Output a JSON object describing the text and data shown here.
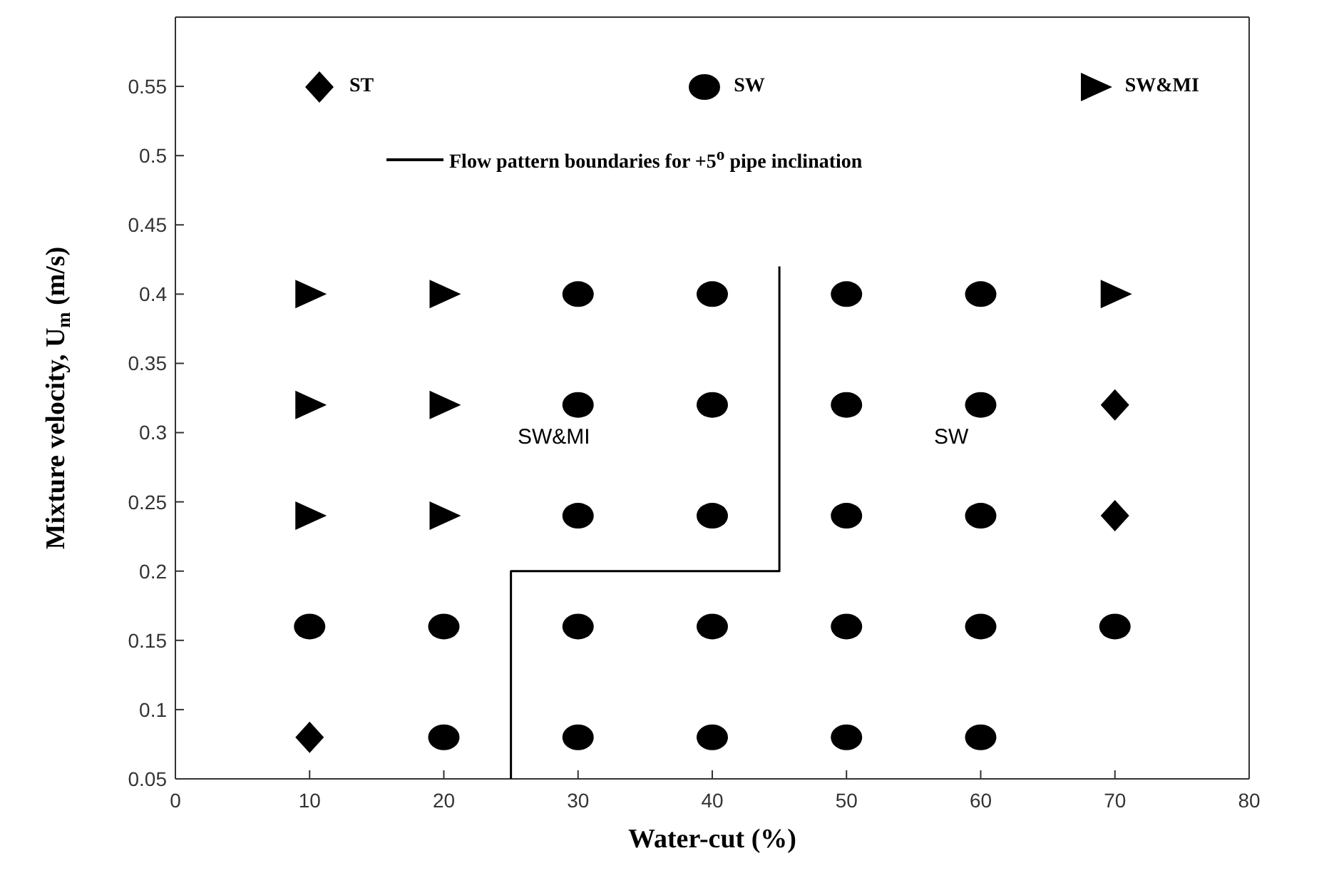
{
  "chart_data": {
    "type": "scatter",
    "xlabel": "Water-cut (%)",
    "ylabel": "Mixture velocity, U$_{m}$ (m/s)",
    "xlim": [
      0,
      80
    ],
    "xticks": [
      0,
      10,
      20,
      30,
      40,
      50,
      60,
      70,
      80
    ],
    "ylim": [
      0.05,
      0.6
    ],
    "yticks": [
      0.05,
      0.1,
      0.15,
      0.2,
      0.25,
      0.3,
      0.35,
      0.4,
      0.45,
      0.5,
      0.55
    ],
    "grid": false,
    "legend": "top",
    "series": [
      {
        "name": "ST",
        "type": "scatter",
        "marker": "diamond",
        "color": "#000000",
        "x": [
          10,
          70,
          70
        ],
        "values": [
          0.08,
          0.32,
          0.24
        ]
      },
      {
        "name": "SW",
        "type": "scatter",
        "marker": "circle",
        "color": "#000000",
        "x": [
          30,
          40,
          50,
          60,
          30,
          40,
          50,
          60,
          30,
          40,
          50,
          60,
          10,
          20,
          30,
          40,
          50,
          60,
          70,
          20,
          30,
          40,
          50,
          60
        ],
        "values": [
          0.4,
          0.4,
          0.4,
          0.4,
          0.32,
          0.32,
          0.32,
          0.32,
          0.24,
          0.24,
          0.24,
          0.24,
          0.16,
          0.16,
          0.16,
          0.16,
          0.16,
          0.16,
          0.16,
          0.08,
          0.08,
          0.08,
          0.08,
          0.08
        ]
      },
      {
        "name": "SW&MI",
        "type": "scatter",
        "marker": "triangle-right",
        "color": "#000000",
        "x": [
          10,
          20,
          70,
          10,
          20,
          10,
          20
        ],
        "values": [
          0.4,
          0.4,
          0.4,
          0.32,
          0.32,
          0.24,
          0.24
        ]
      },
      {
        "name": "Flow pattern boundaries for +5$^{o}$ pipe inclination",
        "type": "line",
        "marker": "none",
        "color": "#000000",
        "x": [
          25,
          25,
          45,
          45
        ],
        "values": [
          0.05,
          0.2,
          0.2,
          0.42
        ]
      }
    ],
    "annotations": [
      "SW&MI",
      "SW"
    ]
  }
}
